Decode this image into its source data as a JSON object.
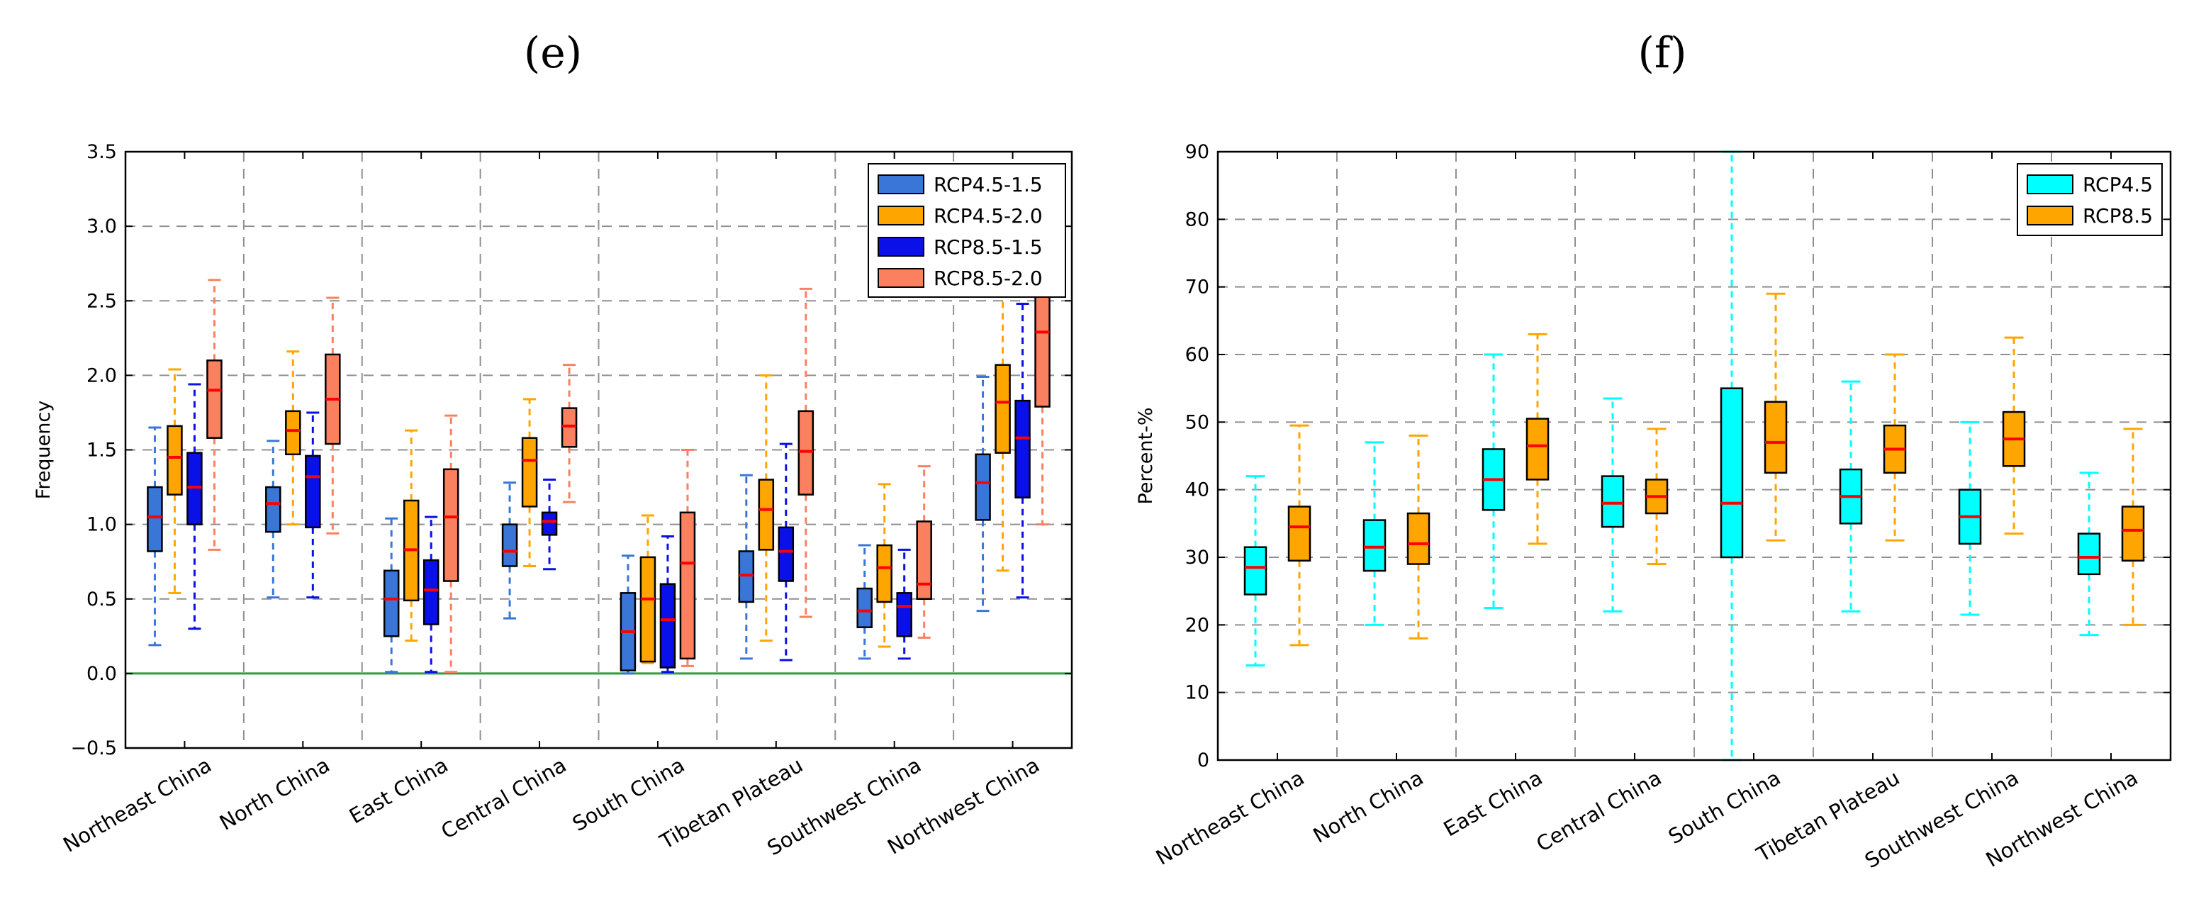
{
  "figure": {
    "panel_e_label": "(e)",
    "panel_f_label": "(f)"
  },
  "colors": {
    "rcp45_15": "#3a76d8",
    "rcp45_20": "#ffa500",
    "rcp85_15": "#0a10e8",
    "rcp85_20": "#fa8060",
    "rcp45_f": "#00ffff",
    "rcp85_f": "#ffa500",
    "median": "#ff0000",
    "zero_line": "#2e9e3a",
    "grid": "#909090"
  },
  "chart_data": [
    {
      "id": "e",
      "type": "box",
      "title": "",
      "xlabel": "",
      "ylabel": "Frequency",
      "ylim": [
        -0.5,
        3.5
      ],
      "yticks": [
        -0.5,
        0.0,
        0.5,
        1.0,
        1.5,
        2.0,
        2.5,
        3.0,
        3.5
      ],
      "ytick_labels": [
        "−0.5",
        "0.0",
        "0.5",
        "1.0",
        "1.5",
        "2.0",
        "2.5",
        "3.0",
        "3.5"
      ],
      "grid": true,
      "legend_position": "top-right",
      "categories": [
        "Northeast China",
        "North China",
        "East China",
        "Central China",
        "South China",
        "Tibetan Plateau",
        "Southwest China",
        "Northwest China"
      ],
      "series": [
        {
          "name": "RCP4.5-1.5",
          "color_key": "rcp45_15",
          "boxes": [
            {
              "min": 0.19,
              "q1": 0.82,
              "median": 1.05,
              "q3": 1.25,
              "max": 1.65
            },
            {
              "min": 0.51,
              "q1": 0.95,
              "median": 1.14,
              "q3": 1.25,
              "max": 1.56
            },
            {
              "min": 0.01,
              "q1": 0.25,
              "median": 0.5,
              "q3": 0.69,
              "max": 1.04
            },
            {
              "min": 0.37,
              "q1": 0.72,
              "median": 0.82,
              "q3": 1.0,
              "max": 1.28
            },
            {
              "min": 0.0,
              "q1": 0.02,
              "median": 0.28,
              "q3": 0.54,
              "max": 0.79
            },
            {
              "min": 0.1,
              "q1": 0.48,
              "median": 0.66,
              "q3": 0.82,
              "max": 1.33
            },
            {
              "min": 0.1,
              "q1": 0.31,
              "median": 0.42,
              "q3": 0.57,
              "max": 0.86
            },
            {
              "min": 0.42,
              "q1": 1.03,
              "median": 1.28,
              "q3": 1.47,
              "max": 1.99
            }
          ]
        },
        {
          "name": "RCP4.5-2.0",
          "color_key": "rcp45_20",
          "boxes": [
            {
              "min": 0.54,
              "q1": 1.2,
              "median": 1.45,
              "q3": 1.66,
              "max": 2.04
            },
            {
              "min": 1.0,
              "q1": 1.47,
              "median": 1.63,
              "q3": 1.76,
              "max": 2.16
            },
            {
              "min": 0.22,
              "q1": 0.49,
              "median": 0.83,
              "q3": 1.16,
              "max": 1.63
            },
            {
              "min": 0.72,
              "q1": 1.12,
              "median": 1.43,
              "q3": 1.58,
              "max": 1.84
            },
            {
              "min": 0.07,
              "q1": 0.08,
              "median": 0.5,
              "q3": 0.78,
              "max": 1.06
            },
            {
              "min": 0.22,
              "q1": 0.83,
              "median": 1.1,
              "q3": 1.3,
              "max": 2.0
            },
            {
              "min": 0.18,
              "q1": 0.48,
              "median": 0.71,
              "q3": 0.86,
              "max": 1.27
            },
            {
              "min": 0.69,
              "q1": 1.48,
              "median": 1.82,
              "q3": 2.07,
              "max": 2.53
            }
          ]
        },
        {
          "name": "RCP8.5-1.5",
          "color_key": "rcp85_15",
          "boxes": [
            {
              "min": 0.3,
              "q1": 1.0,
              "median": 1.25,
              "q3": 1.48,
              "max": 1.94
            },
            {
              "min": 0.51,
              "q1": 0.98,
              "median": 1.32,
              "q3": 1.46,
              "max": 1.75
            },
            {
              "min": 0.01,
              "q1": 0.33,
              "median": 0.56,
              "q3": 0.76,
              "max": 1.05
            },
            {
              "min": 0.7,
              "q1": 0.93,
              "median": 1.02,
              "q3": 1.08,
              "max": 1.3
            },
            {
              "min": 0.01,
              "q1": 0.04,
              "median": 0.36,
              "q3": 0.6,
              "max": 0.92
            },
            {
              "min": 0.09,
              "q1": 0.62,
              "median": 0.82,
              "q3": 0.98,
              "max": 1.54
            },
            {
              "min": 0.1,
              "q1": 0.25,
              "median": 0.45,
              "q3": 0.54,
              "max": 0.83
            },
            {
              "min": 0.51,
              "q1": 1.18,
              "median": 1.58,
              "q3": 1.83,
              "max": 2.48
            }
          ]
        },
        {
          "name": "RCP8.5-2.0",
          "color_key": "rcp85_20",
          "boxes": [
            {
              "min": 0.83,
              "q1": 1.58,
              "median": 1.9,
              "q3": 2.1,
              "max": 2.64
            },
            {
              "min": 0.94,
              "q1": 1.54,
              "median": 1.84,
              "q3": 2.14,
              "max": 2.52
            },
            {
              "min": 0.01,
              "q1": 0.62,
              "median": 1.05,
              "q3": 1.37,
              "max": 1.73
            },
            {
              "min": 1.15,
              "q1": 1.52,
              "median": 1.66,
              "q3": 1.78,
              "max": 2.07
            },
            {
              "min": 0.05,
              "q1": 0.1,
              "median": 0.74,
              "q3": 1.08,
              "max": 1.5
            },
            {
              "min": 0.38,
              "q1": 1.2,
              "median": 1.49,
              "q3": 1.76,
              "max": 2.58
            },
            {
              "min": 0.24,
              "q1": 0.5,
              "median": 0.6,
              "q3": 1.02,
              "max": 1.39
            },
            {
              "min": 1.0,
              "q1": 1.79,
              "median": 2.29,
              "q3": 2.6,
              "max": 3.0
            }
          ]
        }
      ]
    },
    {
      "id": "f",
      "type": "box",
      "title": "",
      "xlabel": "",
      "ylabel": "Percent-%",
      "ylim": [
        0,
        90
      ],
      "yticks": [
        0,
        10,
        20,
        30,
        40,
        50,
        60,
        70,
        80,
        90
      ],
      "ytick_labels": [
        "0",
        "10",
        "20",
        "30",
        "40",
        "50",
        "60",
        "70",
        "80",
        "90"
      ],
      "grid": true,
      "legend_position": "top-right",
      "categories": [
        "Northeast China",
        "North China",
        "East China",
        "Central China",
        "South China",
        "Tibetan Plateau",
        "Southwest China",
        "Northwest China"
      ],
      "series": [
        {
          "name": "RCP4.5",
          "color_key": "rcp45_f",
          "boxes": [
            {
              "min": 14,
              "q1": 24.5,
              "median": 28.5,
              "q3": 31.5,
              "max": 42
            },
            {
              "min": 20,
              "q1": 28,
              "median": 31.5,
              "q3": 35.5,
              "max": 47
            },
            {
              "min": 22.5,
              "q1": 37,
              "median": 41.5,
              "q3": 46,
              "max": 60
            },
            {
              "min": 22,
              "q1": 34.5,
              "median": 38,
              "q3": 42,
              "max": 53.5
            },
            {
              "min": 0,
              "q1": 30,
              "median": 38,
              "q3": 55,
              "max": 90
            },
            {
              "min": 22,
              "q1": 35,
              "median": 39,
              "q3": 43,
              "max": 56
            },
            {
              "min": 21.5,
              "q1": 32,
              "median": 36,
              "q3": 40,
              "max": 50
            },
            {
              "min": 18.5,
              "q1": 27.5,
              "median": 30,
              "q3": 33.5,
              "max": 42.5
            }
          ]
        },
        {
          "name": "RCP8.5",
          "color_key": "rcp85_f",
          "boxes": [
            {
              "min": 17,
              "q1": 29.5,
              "median": 34.5,
              "q3": 37.5,
              "max": 49.5
            },
            {
              "min": 18,
              "q1": 29,
              "median": 32,
              "q3": 36.5,
              "max": 48
            },
            {
              "min": 32,
              "q1": 41.5,
              "median": 46.5,
              "q3": 50.5,
              "max": 63
            },
            {
              "min": 29,
              "q1": 36.5,
              "median": 39,
              "q3": 41.5,
              "max": 49
            },
            {
              "min": 32.5,
              "q1": 42.5,
              "median": 47,
              "q3": 53,
              "max": 69
            },
            {
              "min": 32.5,
              "q1": 42.5,
              "median": 46,
              "q3": 49.5,
              "max": 60
            },
            {
              "min": 33.5,
              "q1": 43.5,
              "median": 47.5,
              "q3": 51.5,
              "max": 62.5
            },
            {
              "min": 20,
              "q1": 29.5,
              "median": 34,
              "q3": 37.5,
              "max": 49
            }
          ]
        }
      ]
    }
  ]
}
